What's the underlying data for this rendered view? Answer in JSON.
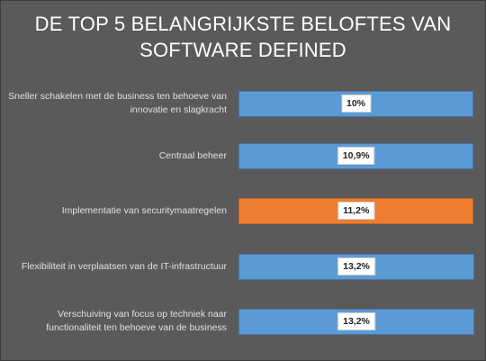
{
  "chart_data": {
    "type": "bar",
    "orientation": "horizontal",
    "title": "DE TOP 5 BELANGRIJKSTE BELOFTES VAN SOFTWARE DEFINED",
    "categories": [
      "Sneller schakelen met de business ten behoeve van innovatie en slagkracht",
      "Centraal beheer",
      "Implementatie van securitymaatregelen",
      "Flexibiliteit in verplaatsen van de IT-infrastructuur",
      "Verschuiving van focus op techniek naar functionaliteit ten behoeve van de business"
    ],
    "values": [
      10,
      10.9,
      11.2,
      13.2,
      13.2
    ],
    "value_labels": [
      "10%",
      "10,9%",
      "11,2%",
      "13,2%",
      "13,2%"
    ],
    "unit": "%",
    "highlight_index": 2,
    "grid": false,
    "legend": "none"
  },
  "title": {
    "line1": "DE TOP 5 BELANGRIJKSTE BELOFTES VAN",
    "line2": "SOFTWARE DEFINED"
  },
  "rows": [
    {
      "label_lines": [
        "Sneller schakelen met de business ten behoeve van",
        "innovatie en slagkracht"
      ],
      "value_label": "10%"
    },
    {
      "label_lines": [
        "Centraal beheer"
      ],
      "value_label": "10,9%"
    },
    {
      "label_lines": [
        "Implementatie van securitymaatregelen"
      ],
      "value_label": "11,2%"
    },
    {
      "label_lines": [
        "Flexibiliteit in verplaatsen van de IT-infrastructuur"
      ],
      "value_label": "13,2%"
    },
    {
      "label_lines": [
        "Verschuiving van focus op techniek naar",
        "functionaliteit ten behoeve van de business"
      ],
      "value_label": "13,2%"
    }
  ],
  "colors": {
    "background": "#5a5a5a",
    "bar": "#5b9bd5",
    "highlight": "#ed7d31",
    "text": "#e0e0e0",
    "title": "#ffffff"
  }
}
